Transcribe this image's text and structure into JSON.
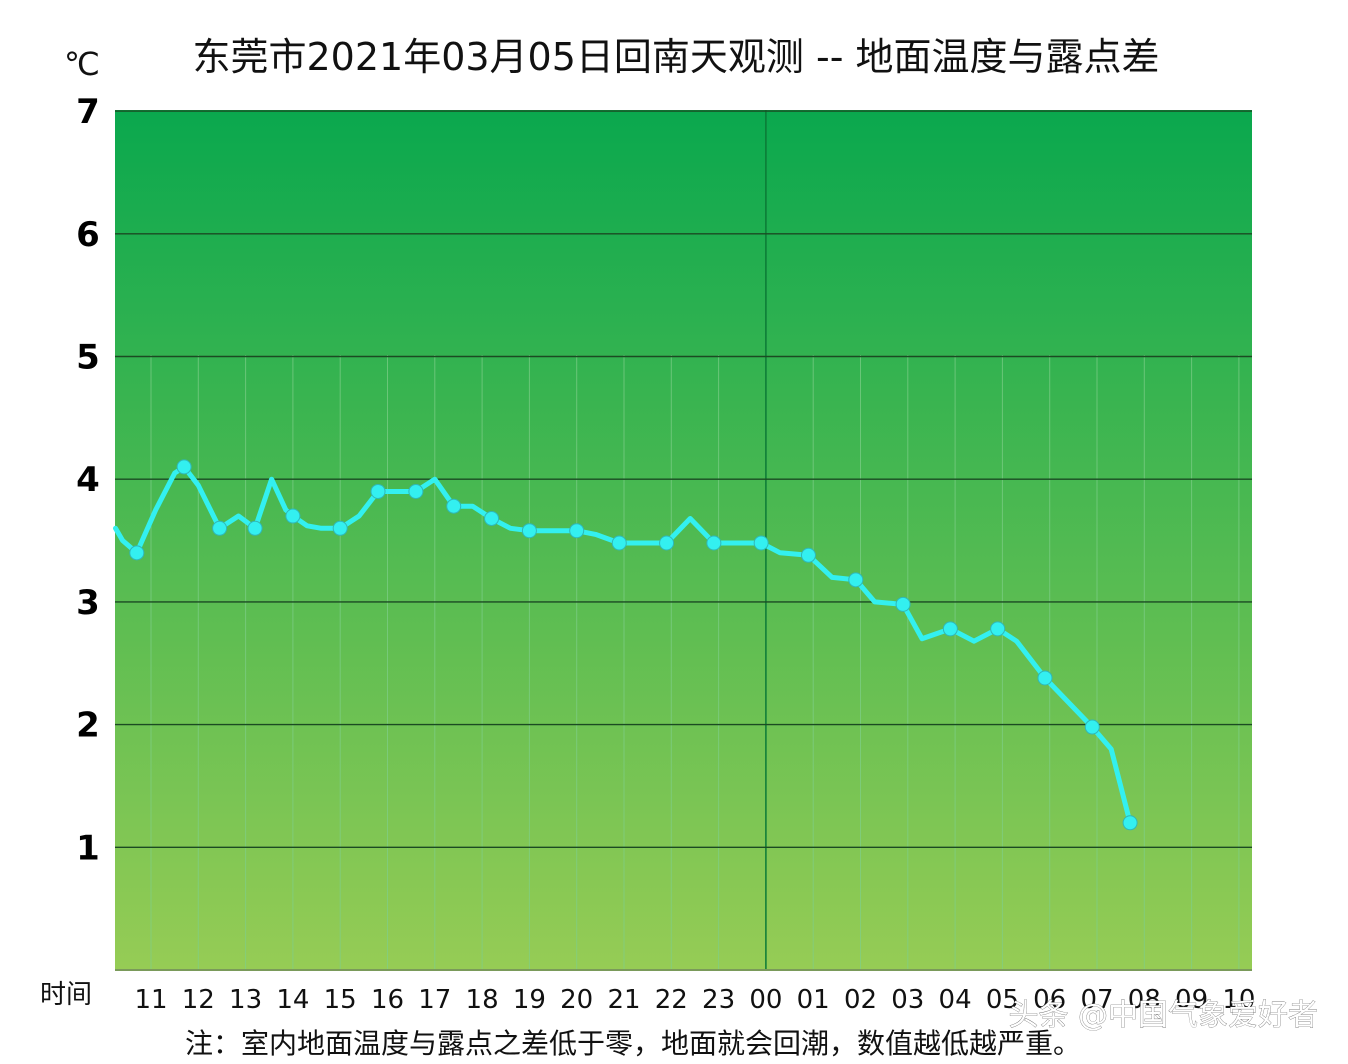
{
  "chart_data": {
    "type": "line",
    "title": "东莞市2021年03月05日回南天观测 -- 地面温度与露点差",
    "unit": "℃",
    "xlabel": "时间",
    "ylim": [
      0,
      7
    ],
    "yticks": [
      1,
      2,
      3,
      4,
      5,
      6,
      7
    ],
    "grid": true,
    "x_ticks": [
      "11",
      "12",
      "13",
      "14",
      "15",
      "16",
      "17",
      "18",
      "19",
      "20",
      "21",
      "22",
      "23",
      "00",
      "01",
      "02",
      "03",
      "04",
      "05",
      "06",
      "07",
      "08",
      "09",
      "10"
    ],
    "series": [
      {
        "color": "#33f0f0",
        "points": [
          {
            "x": 10.25,
            "y": 3.6
          },
          {
            "x": 10.4,
            "y": 3.5
          },
          {
            "x": 10.7,
            "y": 3.4,
            "marker": true
          },
          {
            "x": 11.1,
            "y": 3.75
          },
          {
            "x": 11.5,
            "y": 4.05
          },
          {
            "x": 11.7,
            "y": 4.1,
            "marker": true
          },
          {
            "x": 12.0,
            "y": 3.95
          },
          {
            "x": 12.45,
            "y": 3.6,
            "marker": true
          },
          {
            "x": 12.85,
            "y": 3.7
          },
          {
            "x": 13.2,
            "y": 3.6,
            "marker": true
          },
          {
            "x": 13.55,
            "y": 4.0
          },
          {
            "x": 13.85,
            "y": 3.75
          },
          {
            "x": 14.0,
            "y": 3.7,
            "marker": true
          },
          {
            "x": 14.3,
            "y": 3.62
          },
          {
            "x": 14.6,
            "y": 3.6
          },
          {
            "x": 15.0,
            "y": 3.6,
            "marker": true
          },
          {
            "x": 15.4,
            "y": 3.7
          },
          {
            "x": 15.8,
            "y": 3.9,
            "marker": true
          },
          {
            "x": 16.2,
            "y": 3.9
          },
          {
            "x": 16.6,
            "y": 3.9,
            "marker": true
          },
          {
            "x": 17.0,
            "y": 4.0
          },
          {
            "x": 17.4,
            "y": 3.78,
            "marker": true
          },
          {
            "x": 17.8,
            "y": 3.78
          },
          {
            "x": 18.2,
            "y": 3.68,
            "marker": true
          },
          {
            "x": 18.6,
            "y": 3.6
          },
          {
            "x": 19.0,
            "y": 3.58,
            "marker": true
          },
          {
            "x": 19.6,
            "y": 3.58
          },
          {
            "x": 20.0,
            "y": 3.58,
            "marker": true
          },
          {
            "x": 20.4,
            "y": 3.55
          },
          {
            "x": 20.9,
            "y": 3.48,
            "marker": true
          },
          {
            "x": 21.4,
            "y": 3.48
          },
          {
            "x": 21.9,
            "y": 3.48,
            "marker": true
          },
          {
            "x": 22.4,
            "y": 3.68
          },
          {
            "x": 22.9,
            "y": 3.48,
            "marker": true
          },
          {
            "x": 23.4,
            "y": 3.48
          },
          {
            "x": 23.9,
            "y": 3.48,
            "marker": true
          },
          {
            "x": 24.3,
            "y": 3.4
          },
          {
            "x": 24.9,
            "y": 3.38,
            "marker": true
          },
          {
            "x": 25.4,
            "y": 3.2
          },
          {
            "x": 25.9,
            "y": 3.18,
            "marker": true
          },
          {
            "x": 26.3,
            "y": 3.0
          },
          {
            "x": 26.9,
            "y": 2.98,
            "marker": true
          },
          {
            "x": 27.3,
            "y": 2.7
          },
          {
            "x": 27.9,
            "y": 2.78,
            "marker": true
          },
          {
            "x": 28.4,
            "y": 2.68
          },
          {
            "x": 28.9,
            "y": 2.78,
            "marker": true
          },
          {
            "x": 29.3,
            "y": 2.68
          },
          {
            "x": 29.9,
            "y": 2.38,
            "marker": true
          },
          {
            "x": 30.4,
            "y": 2.18
          },
          {
            "x": 30.9,
            "y": 1.98,
            "marker": true
          },
          {
            "x": 31.3,
            "y": 1.8
          },
          {
            "x": 31.7,
            "y": 1.2,
            "marker": true
          }
        ]
      }
    ]
  },
  "note": "注：室内地面温度与露点之差低于零，地面就会回潮，数值越低越严重。",
  "watermark": "头条 @中国气象爱好者",
  "colors": {
    "plot_top": "#0aa84e",
    "plot_bottom": "#96cc55",
    "grid_line": "#1b4a22",
    "line": "#33f0f0"
  }
}
